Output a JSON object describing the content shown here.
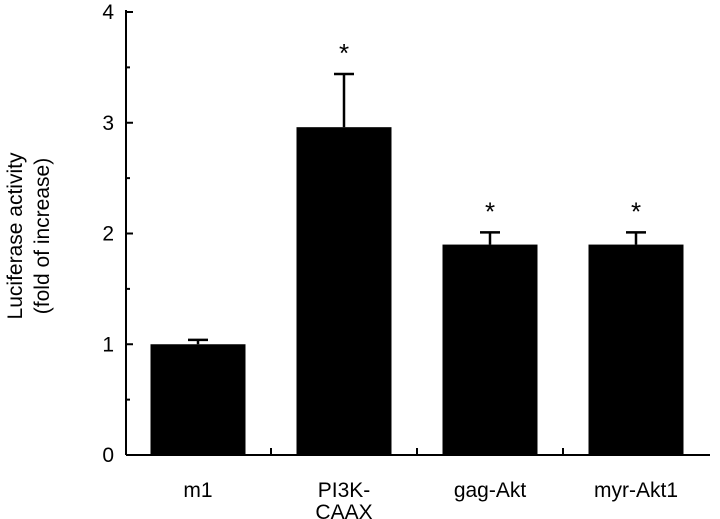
{
  "chart_data": {
    "type": "bar",
    "title": "",
    "xlabel": "",
    "ylabel_lines": [
      "Luciferase activity",
      "(fold of increase)"
    ],
    "ylim": [
      0,
      4
    ],
    "yticks": [
      0,
      1,
      2,
      3,
      4
    ],
    "grid": false,
    "categories": [
      {
        "lines": [
          "m1"
        ]
      },
      {
        "lines": [
          "PI3K-",
          "CAAX"
        ]
      },
      {
        "lines": [
          "gag-Akt"
        ]
      },
      {
        "lines": [
          "myr-Akt1"
        ]
      }
    ],
    "values": [
      1.0,
      2.96,
      1.9,
      1.9
    ],
    "error_upper": [
      0.04,
      0.48,
      0.11,
      0.11
    ],
    "annotations": [
      "",
      "*",
      "*",
      "*"
    ],
    "bar_color": "#000000"
  }
}
